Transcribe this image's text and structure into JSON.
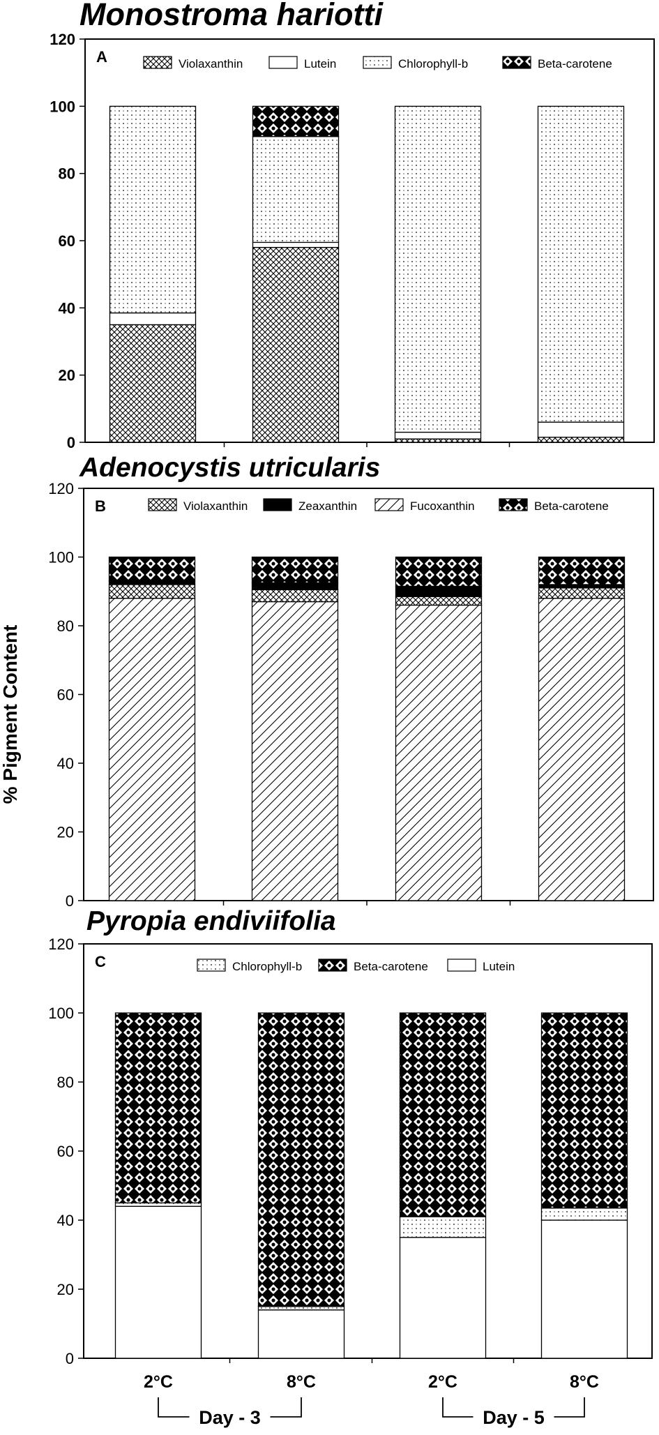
{
  "ylabel": "% Pigment Content",
  "chart_data": [
    {
      "type": "bar",
      "stacked": true,
      "title": "Monostroma hariotti",
      "panel_label": "A",
      "categories": [
        "2°C",
        "8°C",
        "2°C",
        "8°C"
      ],
      "ylim": [
        0,
        120
      ],
      "yticks": [
        0,
        20,
        40,
        60,
        80,
        100,
        120
      ],
      "legend_position": "top",
      "series": [
        {
          "name": "Violaxanthin",
          "pattern": "crosshatch",
          "values": [
            35,
            58,
            1,
            1.5
          ]
        },
        {
          "name": "Lutein",
          "pattern": "white",
          "values": [
            3.5,
            1.5,
            2,
            4.5
          ]
        },
        {
          "name": "Chlorophyll-b",
          "pattern": "dots",
          "values": [
            61.5,
            31.5,
            97,
            94
          ]
        },
        {
          "name": "Beta-carotene",
          "pattern": "diamond",
          "values": [
            0,
            9,
            0,
            0
          ]
        }
      ]
    },
    {
      "type": "bar",
      "stacked": true,
      "title": "Adenocystis utricularis",
      "panel_label": "B",
      "categories": [
        "2°C",
        "8°C",
        "2°C",
        "8°C"
      ],
      "ylim": [
        0,
        120
      ],
      "yticks": [
        0,
        20,
        40,
        60,
        80,
        100,
        120
      ],
      "legend_position": "top",
      "series": [
        {
          "name": "Fucoxanthin",
          "pattern": "diagonal",
          "values": [
            88,
            87,
            86,
            88
          ]
        },
        {
          "name": "Violaxanthin",
          "pattern": "crosshatch",
          "values": [
            4,
            3.5,
            2.5,
            3
          ]
        },
        {
          "name": "Zeaxanthin",
          "pattern": "black",
          "values": [
            1,
            2,
            3,
            1
          ]
        },
        {
          "name": "Beta-carotene",
          "pattern": "diamond",
          "values": [
            7,
            7.5,
            8.5,
            8
          ]
        }
      ]
    },
    {
      "type": "bar",
      "stacked": true,
      "title": "Pyropia endiviifolia",
      "panel_label": "C",
      "categories": [
        "2°C",
        "8°C",
        "2°C",
        "8°C"
      ],
      "ylim": [
        0,
        120
      ],
      "yticks": [
        0,
        20,
        40,
        60,
        80,
        100,
        120
      ],
      "legend_position": "top",
      "series": [
        {
          "name": "Lutein",
          "pattern": "white",
          "values": [
            44,
            14,
            35,
            40
          ]
        },
        {
          "name": "Chlorophyll-b",
          "pattern": "dots",
          "values": [
            1,
            1,
            6,
            3.5
          ]
        },
        {
          "name": "Beta-carotene",
          "pattern": "diamond",
          "values": [
            55,
            85,
            59,
            56.5
          ]
        }
      ],
      "groups": [
        {
          "label": "Day - 3",
          "members": [
            0,
            1
          ]
        },
        {
          "label": "Day - 5",
          "members": [
            2,
            3
          ]
        }
      ]
    }
  ]
}
